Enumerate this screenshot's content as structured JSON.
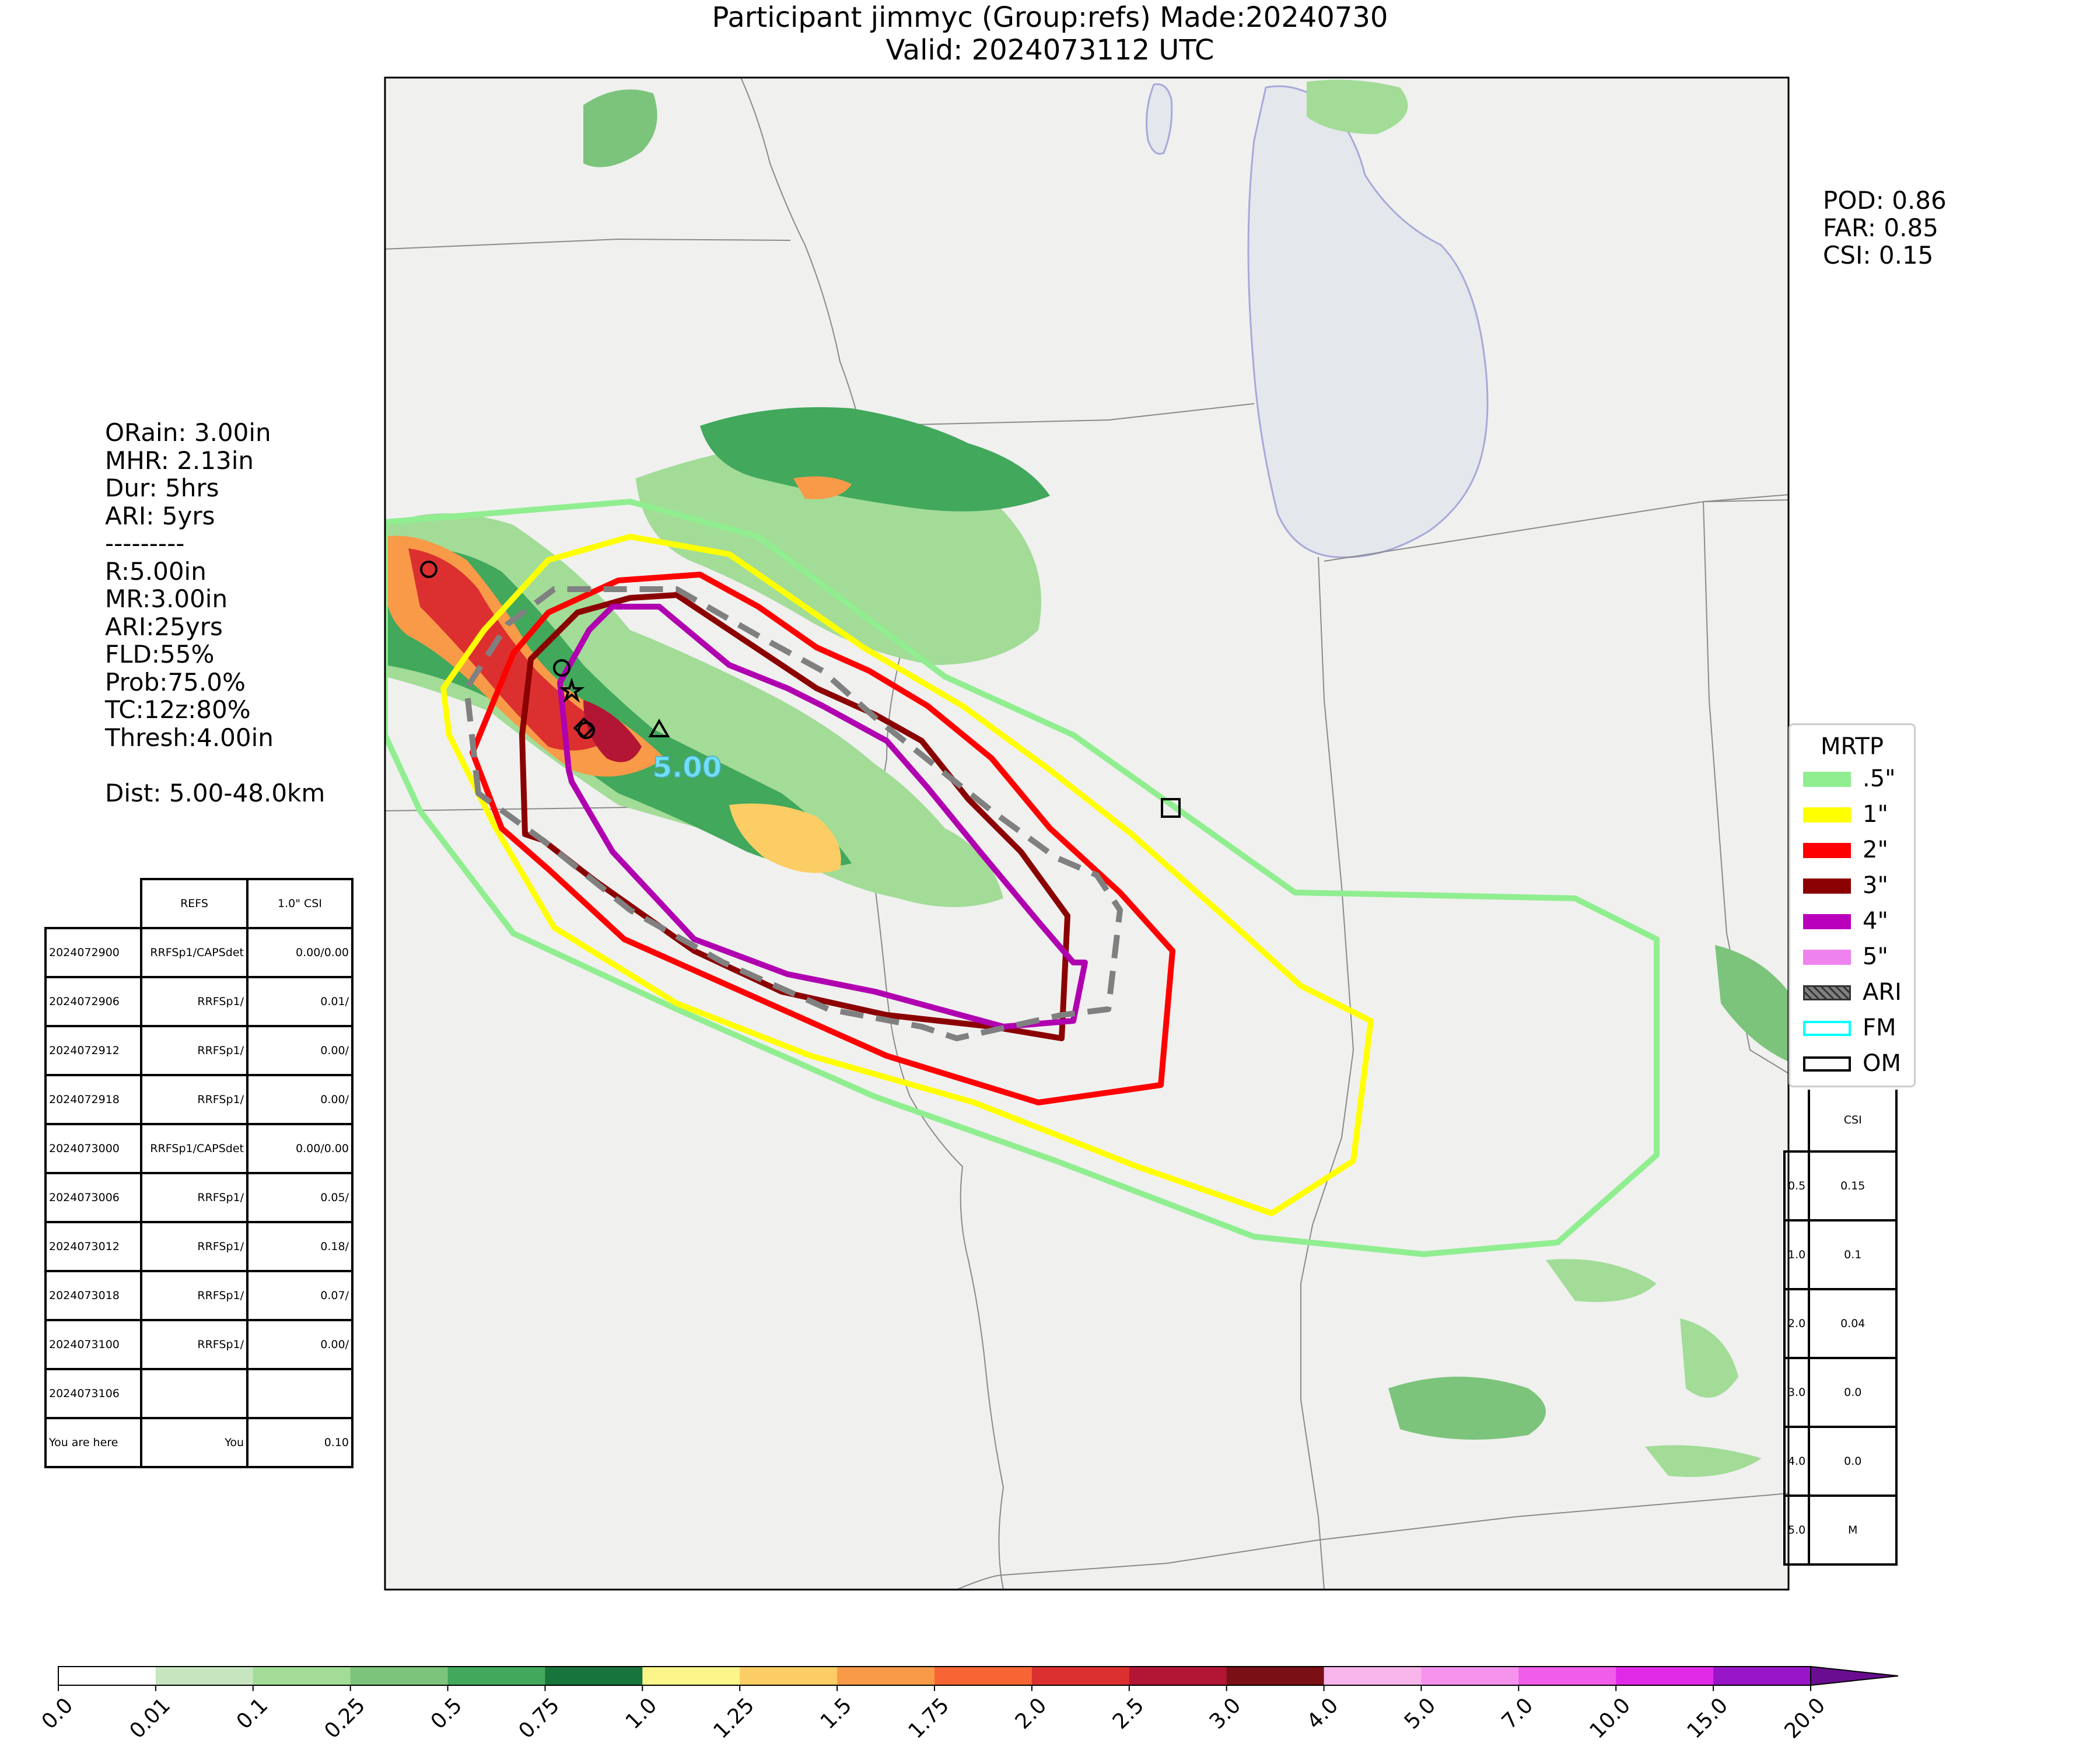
{
  "title_line1": "Participant jimmyc (Group:refs) Made:20240730",
  "title_line2": "Valid: 2024073112 UTC",
  "scores": {
    "pod": "POD: 0.86",
    "far": "FAR: 0.85",
    "csi": "CSI: 0.15"
  },
  "params": [
    "ORain: 3.00in",
    "MHR: 2.13in",
    "Dur: 5hrs",
    "ARI: 5yrs",
    "---------",
    "R:5.00in",
    "MR:3.00in",
    "ARI:25yrs",
    "FLD:55%",
    "Prob:75.0%",
    "TC:12z:80%",
    "Thresh:4.00in",
    "",
    "Dist: 5.00-48.0km"
  ],
  "map_label": "5.00",
  "runs_table": {
    "headers": [
      "",
      "REFS",
      "1.0\" CSI"
    ],
    "rows": [
      [
        "2024072900",
        "RRFSp1/CAPSdet",
        "0.00/0.00"
      ],
      [
        "2024072906",
        "RRFSp1/",
        "0.01/"
      ],
      [
        "2024072912",
        "RRFSp1/",
        "0.00/"
      ],
      [
        "2024072918",
        "RRFSp1/",
        "0.00/"
      ],
      [
        "2024073000",
        "RRFSp1/CAPSdet",
        "0.00/0.00"
      ],
      [
        "2024073006",
        "RRFSp1/",
        "0.05/"
      ],
      [
        "2024073012",
        "RRFSp1/",
        "0.18/"
      ],
      [
        "2024073018",
        "RRFSp1/",
        "0.07/"
      ],
      [
        "2024073100",
        "RRFSp1/",
        "0.00/"
      ],
      [
        "2024073106",
        "",
        ""
      ],
      [
        "You are here",
        "You",
        "0.10"
      ]
    ]
  },
  "csi_table": {
    "header": "CSI",
    "rows": [
      [
        "0.5",
        "0.15"
      ],
      [
        "1.0",
        "0.1"
      ],
      [
        "2.0",
        "0.04"
      ],
      [
        "3.0",
        "0.0"
      ],
      [
        "4.0",
        "0.0"
      ],
      [
        "5.0",
        "M"
      ]
    ]
  },
  "legend": {
    "title": "MRTP",
    "items": [
      {
        "label": ".5\"",
        "color": "#90ee90",
        "style": "fill"
      },
      {
        "label": "1\"",
        "color": "#ffff00",
        "style": "fill"
      },
      {
        "label": "2\"",
        "color": "#ff0000",
        "style": "fill"
      },
      {
        "label": "3\"",
        "color": "#8b0000",
        "style": "fill"
      },
      {
        "label": "4\"",
        "color": "#bb00bb",
        "style": "fill"
      },
      {
        "label": "5\"",
        "color": "#ee82ee",
        "style": "fill"
      },
      {
        "label": "ARI",
        "color": "#808080",
        "style": "hatch"
      },
      {
        "label": "FM",
        "color": "#00ffff",
        "style": "outline"
      },
      {
        "label": "OM",
        "color": "#000000",
        "style": "outline"
      }
    ]
  },
  "colorbar": {
    "ticks": [
      "0.0",
      "0.01",
      "0.1",
      "0.25",
      "0.5",
      "0.75",
      "1.0",
      "1.25",
      "1.5",
      "1.75",
      "2.0",
      "2.5",
      "3.0",
      "4.0",
      "5.0",
      "7.0",
      "10.0",
      "15.0",
      "20.0"
    ],
    "colors": [
      "#ffffff",
      "#c7e6c0",
      "#a2dc97",
      "#7cc47b",
      "#41a85c",
      "#17743a",
      "#fbf58a",
      "#fbcd64",
      "#f99a48",
      "#f76534",
      "#dc3030",
      "#b31534",
      "#7a1015",
      "#f8b6ec",
      "#f593ec",
      "#f05dea",
      "#e12ae8",
      "#9816c8"
    ],
    "extend_color": "#6a0d91"
  },
  "colors": {
    "map_bg": "#f0f0ef",
    "lake": "#e4e7ec",
    "half": "#90ee90",
    "one": "#ffff00",
    "two": "#ff0000",
    "three": "#8b0000",
    "four": "#b000b0",
    "ari": "#808080"
  }
}
